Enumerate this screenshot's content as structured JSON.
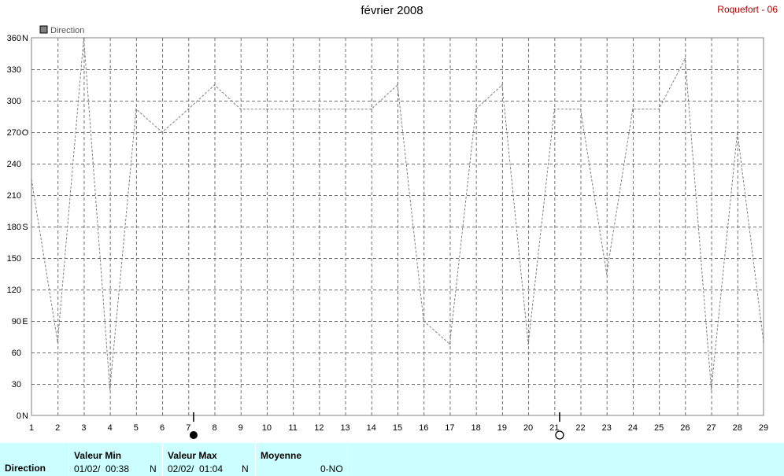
{
  "header": {
    "title": "février 2008",
    "station": "Roquefort - 06"
  },
  "chart_data": {
    "type": "line",
    "legend": "Direction",
    "legend_placement": "top-left",
    "grid": true,
    "x": [
      1,
      2,
      3,
      4,
      5,
      6,
      7,
      8,
      9,
      10,
      11,
      12,
      13,
      14,
      15,
      16,
      17,
      18,
      19,
      20,
      21,
      22,
      23,
      24,
      25,
      26,
      27,
      28,
      29
    ],
    "x_ticks": [
      "1",
      "2",
      "3",
      "4",
      "5",
      "6",
      "7",
      "8",
      "9",
      "10",
      "11",
      "12",
      "13",
      "14",
      "15",
      "16",
      "17",
      "18",
      "19",
      "20",
      "21",
      "22",
      "23",
      "24",
      "25",
      "26",
      "27",
      "28",
      "29"
    ],
    "y_ticks": [
      {
        "v": 0,
        "label": "0",
        "dir": "N"
      },
      {
        "v": 30,
        "label": "30",
        "dir": ""
      },
      {
        "v": 60,
        "label": "60",
        "dir": ""
      },
      {
        "v": 90,
        "label": "90",
        "dir": "E"
      },
      {
        "v": 120,
        "label": "120",
        "dir": ""
      },
      {
        "v": 150,
        "label": "150",
        "dir": ""
      },
      {
        "v": 180,
        "label": "180",
        "dir": "S"
      },
      {
        "v": 210,
        "label": "210",
        "dir": ""
      },
      {
        "v": 240,
        "label": "240",
        "dir": ""
      },
      {
        "v": 270,
        "label": "270",
        "dir": "O"
      },
      {
        "v": 300,
        "label": "300",
        "dir": ""
      },
      {
        "v": 330,
        "label": "330",
        "dir": ""
      },
      {
        "v": 360,
        "label": "360",
        "dir": "N"
      }
    ],
    "xlim": [
      1,
      29
    ],
    "ylim": [
      0,
      360
    ],
    "line_color": "#808080",
    "series": [
      {
        "name": "Direction",
        "points": [
          [
            1,
            225
          ],
          [
            2,
            70
          ],
          [
            3,
            360
          ],
          [
            4,
            25
          ],
          [
            5,
            292
          ],
          [
            6,
            270
          ],
          [
            7,
            292
          ],
          [
            8,
            315
          ],
          [
            9,
            292
          ],
          [
            10,
            292
          ],
          [
            11,
            292
          ],
          [
            12,
            292
          ],
          [
            13,
            292
          ],
          [
            14,
            292
          ],
          [
            15,
            315
          ],
          [
            16,
            90
          ],
          [
            17,
            68
          ],
          [
            18,
            292
          ],
          [
            19,
            315
          ],
          [
            20,
            68
          ],
          [
            21,
            292
          ],
          [
            22,
            292
          ],
          [
            23,
            135
          ],
          [
            24,
            292
          ],
          [
            25,
            292
          ],
          [
            26,
            340
          ],
          [
            27,
            25
          ],
          [
            28,
            270
          ],
          [
            29,
            70
          ]
        ]
      }
    ],
    "moon_phases": [
      {
        "x": 7.2,
        "phase": "new"
      },
      {
        "x": 21.2,
        "phase": "full"
      }
    ]
  },
  "stats": {
    "row_label": "Direction",
    "min": {
      "header": "Valeur Min",
      "date": "01/02/",
      "time": "00:38",
      "dir": "N"
    },
    "max": {
      "header": "Valeur Max",
      "date": "02/02/",
      "time": "01:04",
      "dir": "N"
    },
    "mean": {
      "header": "Moyenne",
      "value": "0-NO"
    }
  }
}
